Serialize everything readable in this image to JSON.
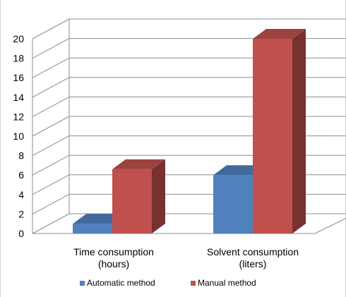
{
  "chart_data": {
    "type": "bar",
    "categories": [
      "Time consumption (hours)",
      "Solvent consumption (liters)"
    ],
    "category_lines": [
      [
        "Time consumption",
        "(hours)"
      ],
      [
        "Solvent consumption",
        "(liters)"
      ]
    ],
    "series": [
      {
        "name": "Automatic method",
        "values": [
          1,
          6
        ],
        "color": "#4f81bd"
      },
      {
        "name": "Manual method",
        "values": [
          6.6,
          20
        ],
        "color": "#c0504d"
      }
    ],
    "ylim": [
      0,
      20
    ],
    "yticks": [
      "0",
      "2",
      "4",
      "6",
      "8",
      "10",
      "12",
      "14",
      "16",
      "18",
      "20"
    ],
    "grid": true,
    "legend": "bottom",
    "3d": true
  }
}
